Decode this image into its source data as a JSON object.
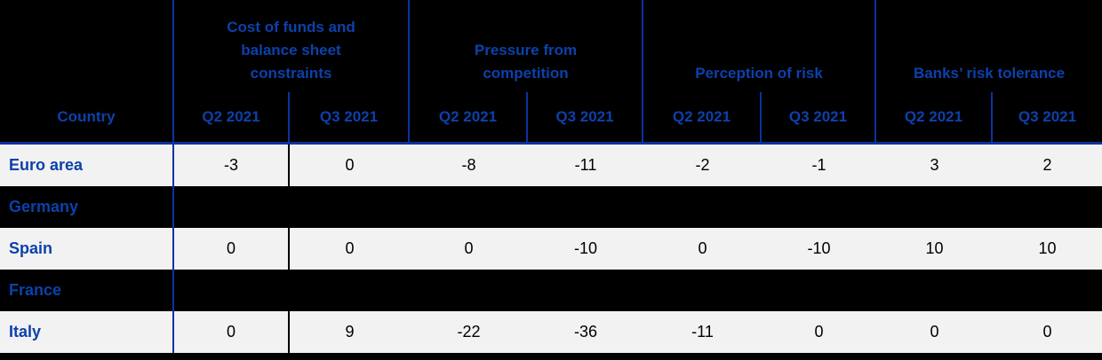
{
  "table": {
    "country_header": "Country",
    "groups": [
      {
        "label": "Cost of funds and balance sheet constraints"
      },
      {
        "label": "Pressure from competition"
      },
      {
        "label": "Perception of risk"
      },
      {
        "label": "Banks’ risk tolerance"
      }
    ],
    "period_headers": [
      "Q2 2021",
      "Q3 2021",
      "Q2 2021",
      "Q3 2021",
      "Q2 2021",
      "Q3 2021",
      "Q2 2021",
      "Q3 2021"
    ],
    "rows": [
      {
        "country": "Euro area",
        "values": [
          "-3",
          "0",
          "-8",
          "-11",
          "-2",
          "-1",
          "3",
          "2"
        ]
      },
      {
        "country": "Germany",
        "values": [
          "",
          "",
          "",
          "",
          "",
          "",
          "",
          ""
        ]
      },
      {
        "country": "Spain",
        "values": [
          "0",
          "0",
          "0",
          "-10",
          "0",
          "-10",
          "10",
          "10"
        ]
      },
      {
        "country": "France",
        "values": [
          "",
          "",
          "",
          "",
          "",
          "",
          "",
          ""
        ]
      },
      {
        "country": "Italy",
        "values": [
          "0",
          "9",
          "-22",
          "-36",
          "-11",
          "0",
          "0",
          "0"
        ]
      }
    ]
  },
  "colors": {
    "header_text_blue": "#0c41ab",
    "line_blue": "#0a33a0",
    "row_light_background": "#f2f2f2",
    "background_black": "#000000",
    "value_text": "#000000"
  }
}
